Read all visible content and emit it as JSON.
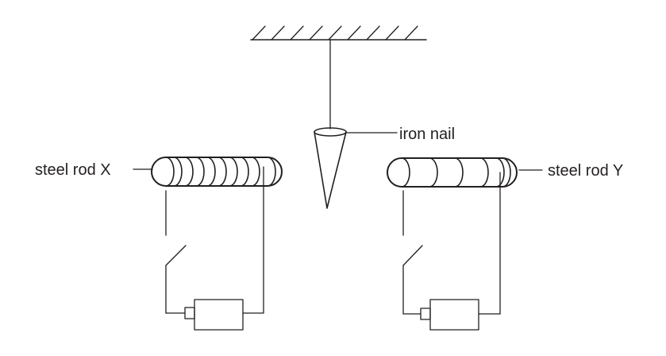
{
  "labels": {
    "iron_nail": "iron nail",
    "rod_x": "steel rod X",
    "rod_y": "steel rod Y"
  },
  "colors": {
    "ink": "#231f20",
    "background": "#ffffff"
  }
}
